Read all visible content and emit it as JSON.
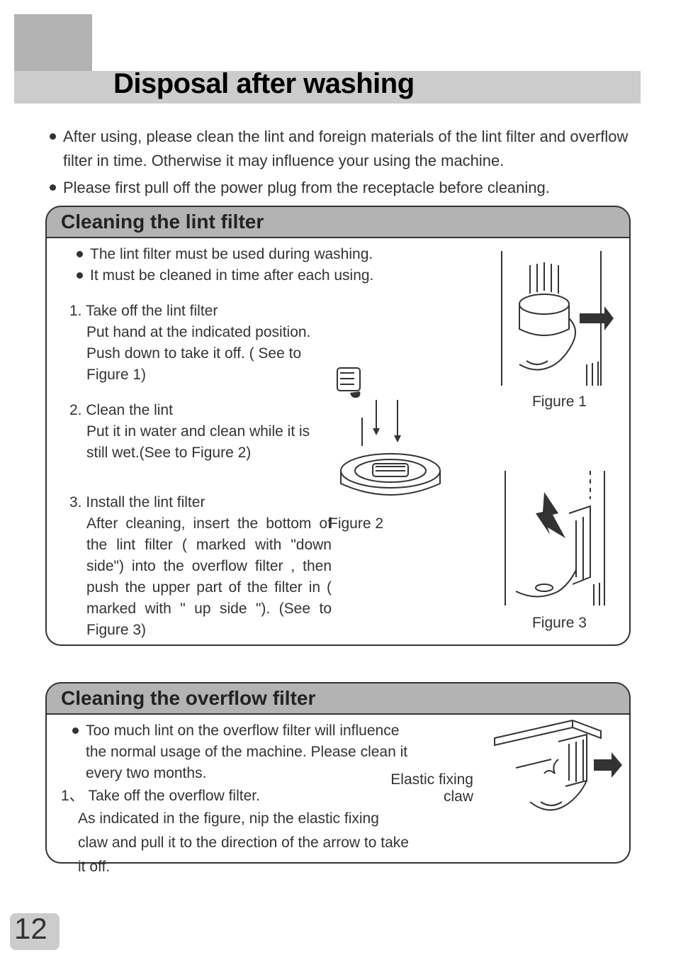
{
  "colors": {
    "page_bg": "#ffffff",
    "gray_block": "#b3b3b3",
    "title_bar_bg": "#cccccc",
    "section_header_bg": "#b3b3b3",
    "border": "#333333",
    "text": "#333333",
    "title_text": "#000000"
  },
  "typography": {
    "title_fontsize": 40,
    "title_fontweight": 900,
    "body_fontsize": 22,
    "section_header_fontsize": 28,
    "page_num_fontsize": 42
  },
  "title": "Disposal after washing",
  "intro_bullets": [
    "After using,  please clean the lint and foreign materials of the lint filter and overflow filter in time.  Otherwise it may influence your using the machine.",
    "Please first pull off the power plug from the receptacle before cleaning."
  ],
  "section1": {
    "header": "Cleaning the lint filter",
    "bullets": [
      "The lint filter must be used during washing.",
      "It must be cleaned in time after each using."
    ],
    "steps": [
      {
        "num": "1.",
        "title": "Take off the lint filter",
        "body": "Put hand at the indicated position. Push down to take it off. ( See to Figure 1)"
      },
      {
        "num": "2.",
        "title": "Clean the lint",
        "body": "Put it in water and clean while it is still wet.(See to Figure 2)"
      },
      {
        "num": "3.",
        "title": "Install the lint filter",
        "body": "After cleaning, insert the bottom of  the  lint  filter  ( marked   with \"down side\") into the overflow filter , then  push  the upper  part  of  the filter in  ( marked  with  \" up side \"). (See to Figure 3)"
      }
    ],
    "figure_labels": {
      "fig1": "Figure 1",
      "fig2": "Figure 2",
      "fig3": "Figure 3"
    }
  },
  "section2": {
    "header": "Cleaning the overflow filter",
    "bullet": "Too much lint on the overflow filter will influence the  normal  usage of  the  machine.  Please clean it every two months.",
    "step_num": "1、",
    "step_title": "Take off the overflow filter.",
    "step_body": "As indicated in the figure, nip the elastic fixing claw and pull it to the direction of the arrow to take it off.",
    "callout": "Elastic fixing claw"
  },
  "page_number": "12"
}
